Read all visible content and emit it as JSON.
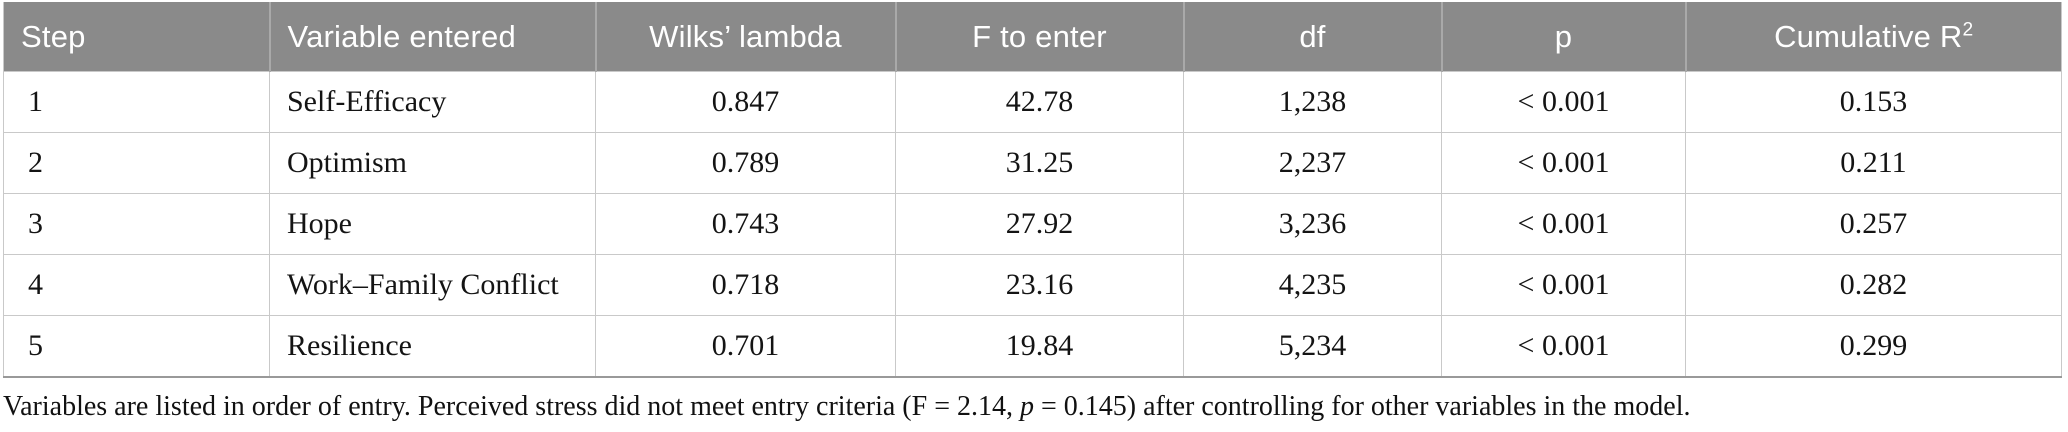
{
  "table": {
    "columns": [
      {
        "key": "step",
        "label": "Step"
      },
      {
        "key": "variable",
        "label": "Variable entered"
      },
      {
        "key": "wilks",
        "label": "Wilks’ lambda"
      },
      {
        "key": "f",
        "label": "F to enter"
      },
      {
        "key": "df",
        "label": "df"
      },
      {
        "key": "p",
        "label": "p"
      },
      {
        "key": "r2",
        "label": "Cumulative R",
        "sup": "2"
      }
    ],
    "rows": [
      {
        "step": "1",
        "variable": "Self-Efficacy",
        "wilks": "0.847",
        "f": "42.78",
        "df": "1,238",
        "p": "< 0.001",
        "r2": "0.153"
      },
      {
        "step": "2",
        "variable": "Optimism",
        "wilks": "0.789",
        "f": "31.25",
        "df": "2,237",
        "p": "< 0.001",
        "r2": "0.211"
      },
      {
        "step": "3",
        "variable": "Hope",
        "wilks": "0.743",
        "f": "27.92",
        "df": "3,236",
        "p": "< 0.001",
        "r2": "0.257"
      },
      {
        "step": "4",
        "variable": "Work–Family Conflict",
        "wilks": "0.718",
        "f": "23.16",
        "df": "4,235",
        "p": "< 0.001",
        "r2": "0.282"
      },
      {
        "step": "5",
        "variable": "Resilience",
        "wilks": "0.701",
        "f": "19.84",
        "df": "5,234",
        "p": "< 0.001",
        "r2": "0.299"
      }
    ]
  },
  "footnote": {
    "part1": "Variables are listed in order of entry. Perceived stress did not meet entry criteria (F = 2.14, ",
    "italic_term": "p",
    "part2": " = 0.145) after controlling for other variables in the model."
  },
  "colors": {
    "header_bg": "#8a8a8a",
    "header_text": "#ffffff",
    "grid_line": "#c9c9c9",
    "bottom_border": "#999999",
    "body_text": "#141414"
  }
}
